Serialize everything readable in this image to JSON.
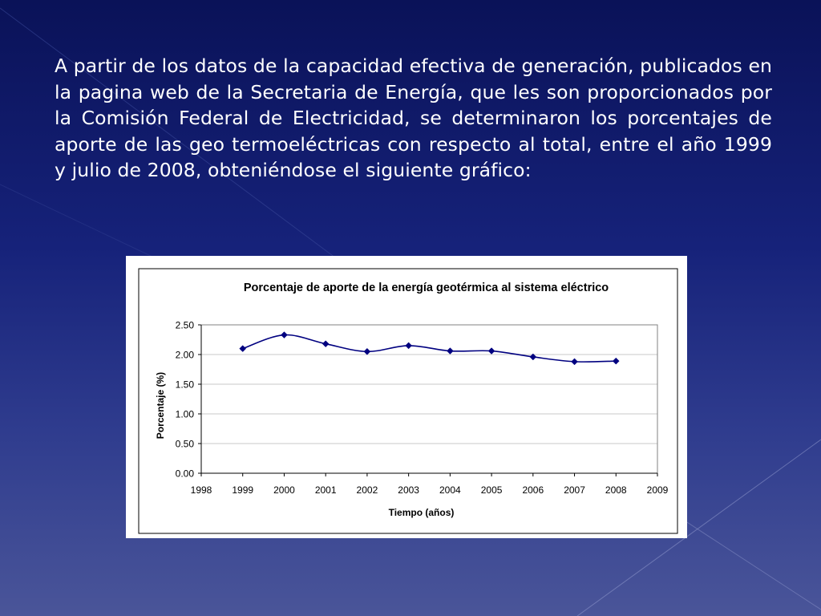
{
  "slide": {
    "paragraph": "A partir de los datos de la capacidad efectiva de generación, publicados en la pagina web de la Secretaria de Energía, que les son proporcionados por la Comisión Federal de Electricidad, se determinaron los porcentajes de aporte de las geo termoeléctricas con respecto al total, entre el año 1999 y julio de 2008, obteniéndose el siguiente gráfico:"
  },
  "colors": {
    "series": "#000080",
    "grid": "#c8c8c8",
    "border": "#000000"
  },
  "chart_data": {
    "type": "line",
    "title": "Porcentaje de aporte de la energía geotérmica al sistema eléctrico",
    "xlabel": "Tiempo (años)",
    "ylabel": "Porcentaje (%)",
    "xlim": [
      1998,
      2009
    ],
    "ylim": [
      0,
      2.5
    ],
    "x_ticks": [
      "1998",
      "1999",
      "2000",
      "2001",
      "2002",
      "2003",
      "2004",
      "2005",
      "2006",
      "2007",
      "2008",
      "2009"
    ],
    "y_ticks": [
      "0.00",
      "0.50",
      "1.00",
      "1.50",
      "2.00",
      "2.50"
    ],
    "grid": "horizontal",
    "legend": "none",
    "smooth": true,
    "marker": "diamond",
    "series": [
      {
        "x": [
          1999,
          2000,
          2001,
          2002,
          2003,
          2004,
          2005,
          2006,
          2007,
          2008
        ],
        "values": [
          2.1,
          2.33,
          2.18,
          2.05,
          2.15,
          2.06,
          2.06,
          1.96,
          1.88,
          1.89
        ]
      }
    ]
  }
}
